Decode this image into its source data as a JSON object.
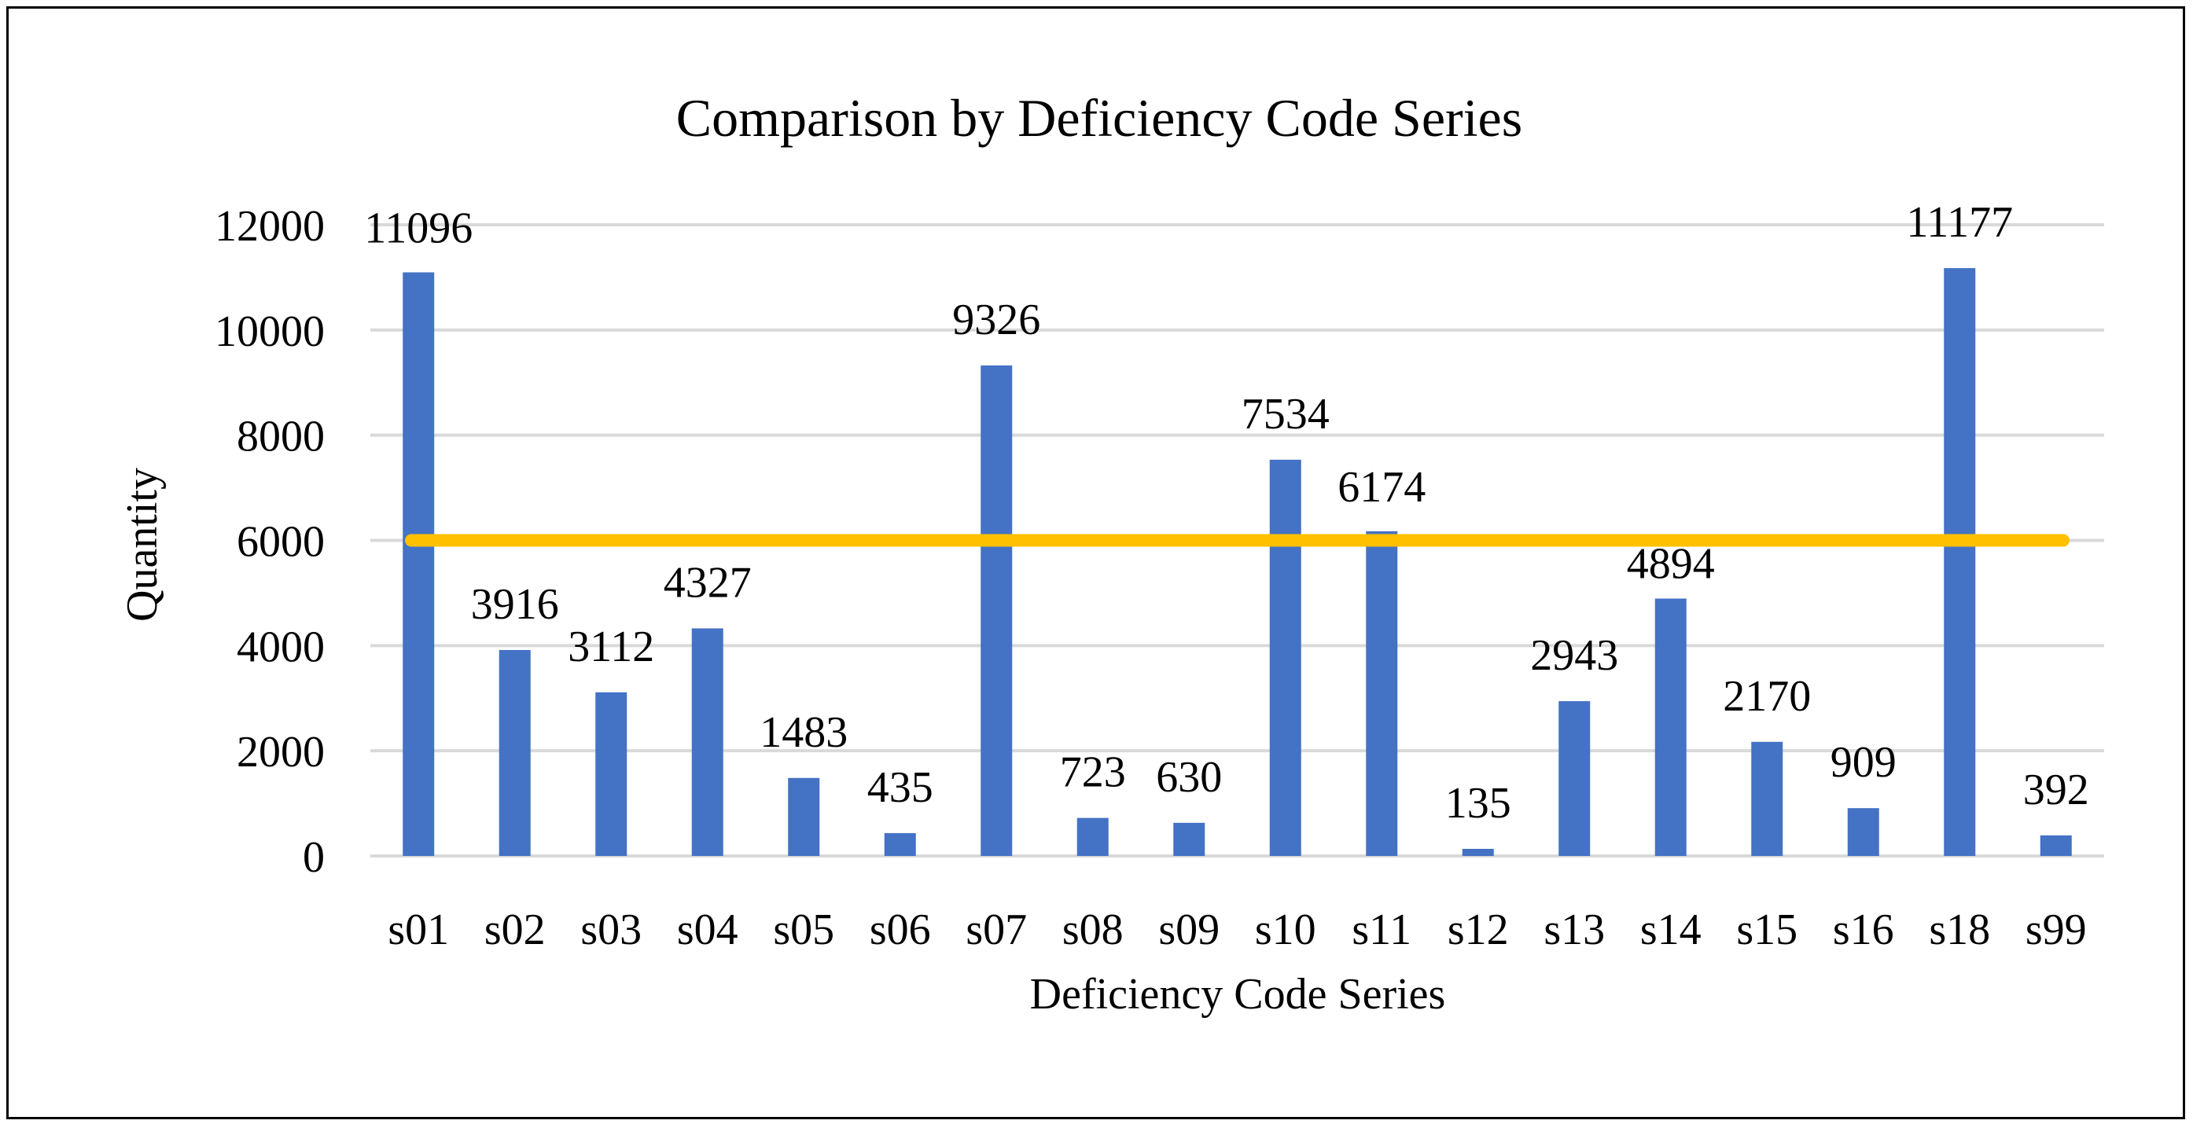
{
  "chart_data": {
    "type": "bar",
    "title": "Comparison by Deficiency Code Series",
    "xlabel": "Deficiency Code Series",
    "ylabel": "Quantity",
    "categories": [
      "s01",
      "s02",
      "s03",
      "s04",
      "s05",
      "s06",
      "s07",
      "s08",
      "s09",
      "s10",
      "s11",
      "s12",
      "s13",
      "s14",
      "s15",
      "s16",
      "s18",
      "s99"
    ],
    "series": [
      {
        "name": "Quantity",
        "values": [
          11096,
          3916,
          3112,
          4327,
          1483,
          435,
          9326,
          723,
          630,
          7534,
          6174,
          135,
          2943,
          4894,
          2170,
          909,
          11177,
          392
        ],
        "color": "#4472c4"
      }
    ],
    "reference_line": {
      "value": 6000,
      "color": "#ffc000"
    },
    "ylim": [
      0,
      12000
    ],
    "yticks": [
      0,
      2000,
      4000,
      6000,
      8000,
      10000,
      12000
    ],
    "grid": true,
    "gridline_color": "#d9d9d9",
    "data_labels": true,
    "legend": "none"
  }
}
